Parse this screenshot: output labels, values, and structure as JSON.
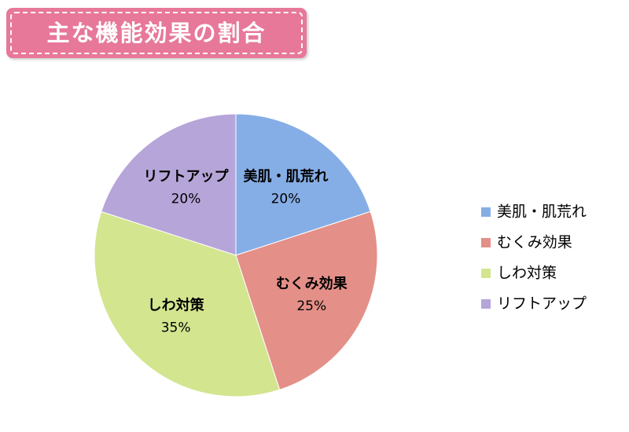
{
  "chart_data": {
    "type": "pie",
    "title": "主な機能効果の割合",
    "categories": [
      "美肌・肌荒れ",
      "むくみ効果",
      "しわ対策",
      "リフトアップ"
    ],
    "values": [
      20,
      25,
      35,
      20
    ],
    "value_labels": [
      "20%",
      "25%",
      "35%",
      "20%"
    ],
    "colors": [
      "#86aee6",
      "#e48f88",
      "#d3e58f",
      "#b6a5d8"
    ],
    "legend": "right"
  }
}
